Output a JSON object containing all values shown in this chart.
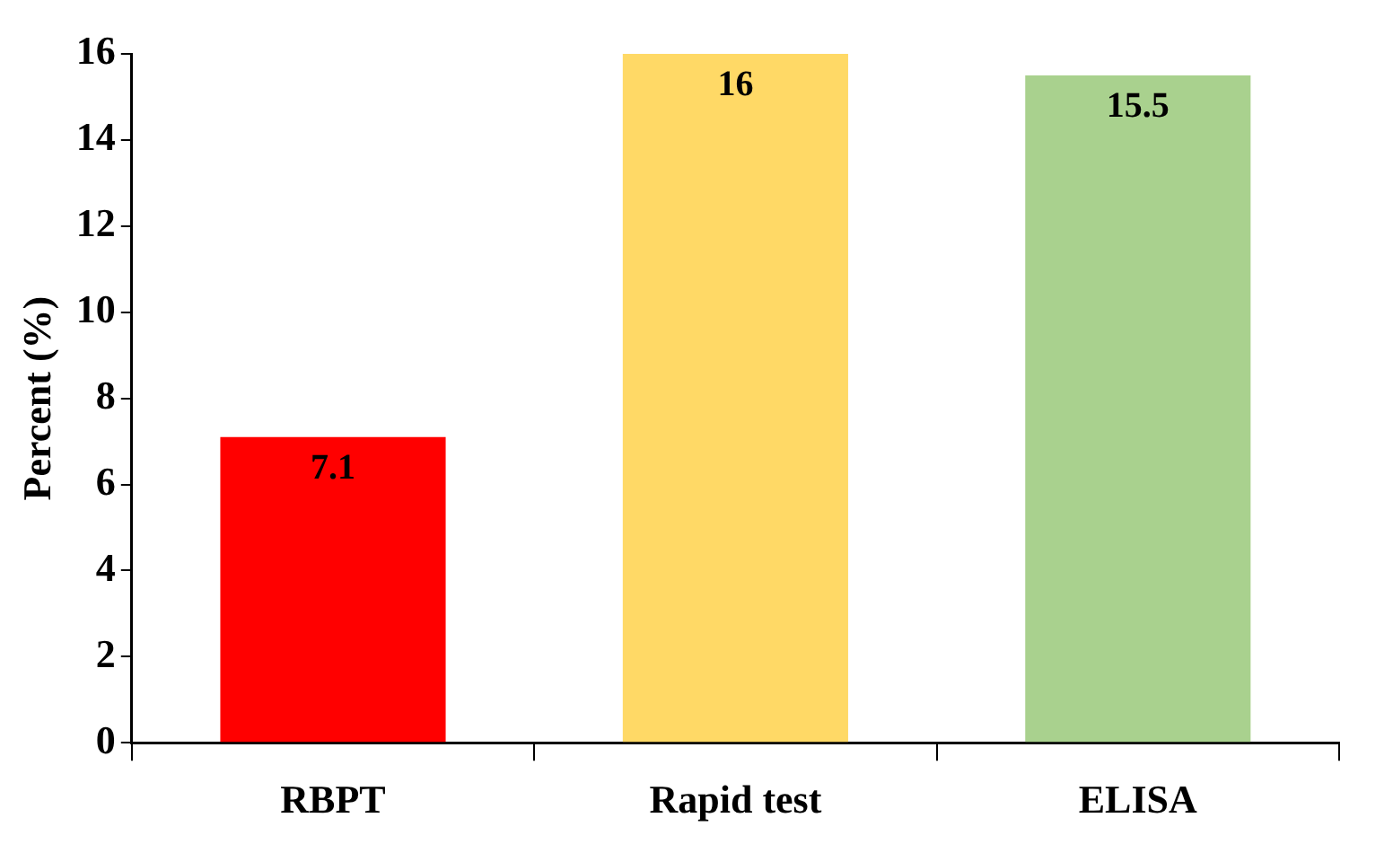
{
  "chart_data": {
    "type": "bar",
    "ylabel": "Percent (%)",
    "categories": [
      "RBPT",
      "Rapid test",
      "ELISA"
    ],
    "values": [
      7.1,
      16,
      15.5
    ],
    "colors": [
      "#ff0000",
      "#ffd966",
      "#a9d18e"
    ],
    "ylim": [
      0,
      16
    ],
    "yticks": [
      0,
      2,
      4,
      6,
      8,
      10,
      12,
      14,
      16
    ],
    "grid": false,
    "legend": false,
    "data_labels": true
  }
}
